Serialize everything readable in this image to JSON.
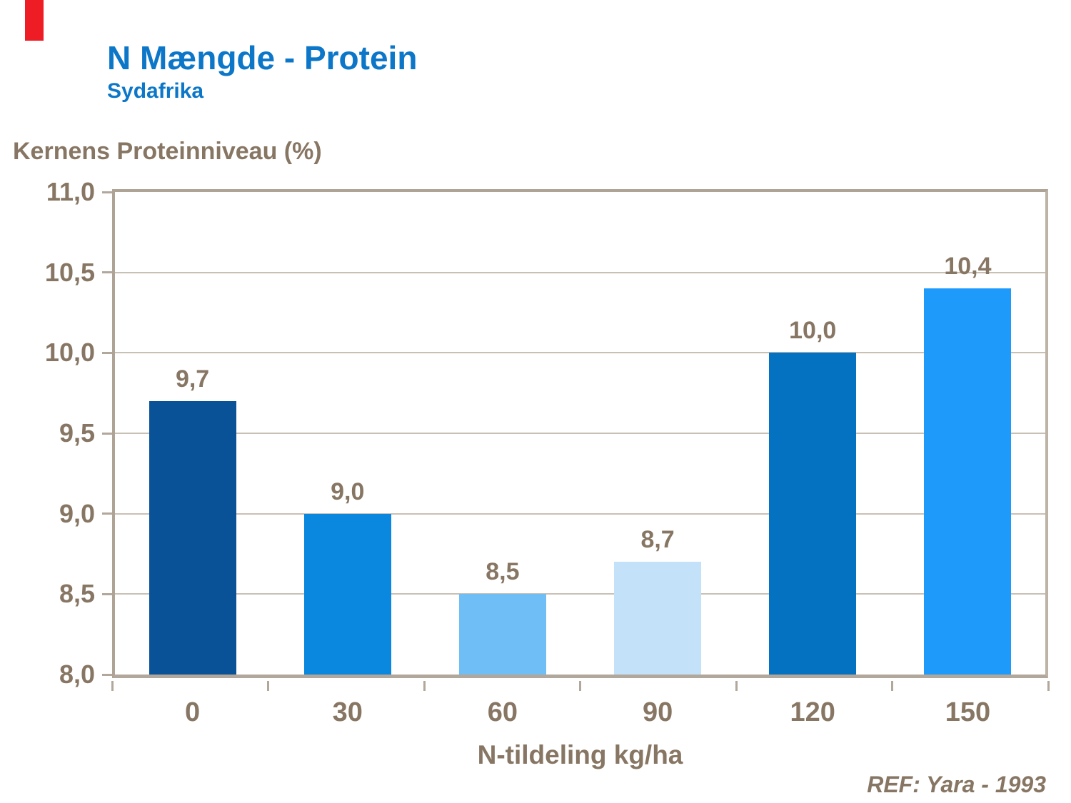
{
  "header": {
    "title": "N Mængde - Protein",
    "subtitle": "Sydafrika",
    "title_color": "#0C77C8"
  },
  "accent": {
    "red_bar_color": "#EE1C25"
  },
  "footer": {
    "ref_label": "REF: Yara - 1993"
  },
  "chart_data": {
    "type": "bar",
    "title": "N Mængde - Protein",
    "subtitle": "Sydafrika",
    "ylabel": "Kernens Proteinniveau (%)",
    "xlabel": "N-tildeling kg/ha",
    "categories": [
      "0",
      "30",
      "60",
      "90",
      "120",
      "150"
    ],
    "values": [
      9.7,
      9.0,
      8.5,
      8.7,
      10.0,
      10.4
    ],
    "value_labels": [
      "9,7",
      "9,0",
      "8,5",
      "8,7",
      "10,0",
      "10,4"
    ],
    "bar_colors": [
      "#0A5298",
      "#0A87DF",
      "#6FBEF5",
      "#C3E1F9",
      "#0571C1",
      "#1E9AFB"
    ],
    "ylim": [
      8.0,
      11.0
    ],
    "ytick_step": 0.5,
    "ytick_labels": [
      "11,0",
      "10,5",
      "10,0",
      "9,5",
      "9,0",
      "8,5",
      "8,0"
    ],
    "grid": true,
    "legend_position": "none",
    "text_color": "#877663",
    "axis_color": "#B2A79B",
    "gridline_color": "#C9C0B5"
  }
}
